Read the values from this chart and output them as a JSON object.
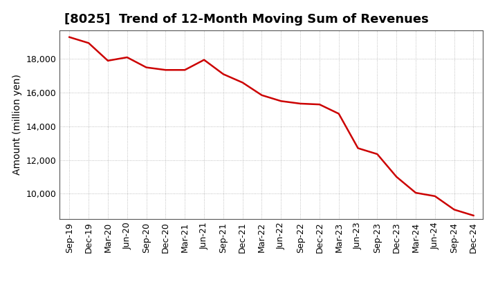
{
  "title": "[8025]  Trend of 12-Month Moving Sum of Revenues",
  "ylabel": "Amount (million yen)",
  "line_color": "#cc0000",
  "line_width": 1.8,
  "background_color": "#ffffff",
  "grid_color": "#999999",
  "xlabels": [
    "Sep-19",
    "Dec-19",
    "Mar-20",
    "Jun-20",
    "Sep-20",
    "Dec-20",
    "Mar-21",
    "Jun-21",
    "Sep-21",
    "Dec-21",
    "Mar-22",
    "Jun-22",
    "Sep-22",
    "Dec-22",
    "Mar-23",
    "Jun-23",
    "Sep-23",
    "Dec-23",
    "Mar-24",
    "Jun-24",
    "Sep-24",
    "Dec-24"
  ],
  "values": [
    19300,
    18950,
    17900,
    18100,
    17500,
    17350,
    17350,
    17950,
    17100,
    16600,
    15850,
    15500,
    15350,
    15300,
    14750,
    12700,
    12350,
    11000,
    10050,
    9850,
    9050,
    8700
  ],
  "ylim": [
    8500,
    19700
  ],
  "yticks": [
    10000,
    12000,
    14000,
    16000,
    18000
  ],
  "title_fontsize": 13,
  "label_fontsize": 10,
  "tick_fontsize": 9
}
